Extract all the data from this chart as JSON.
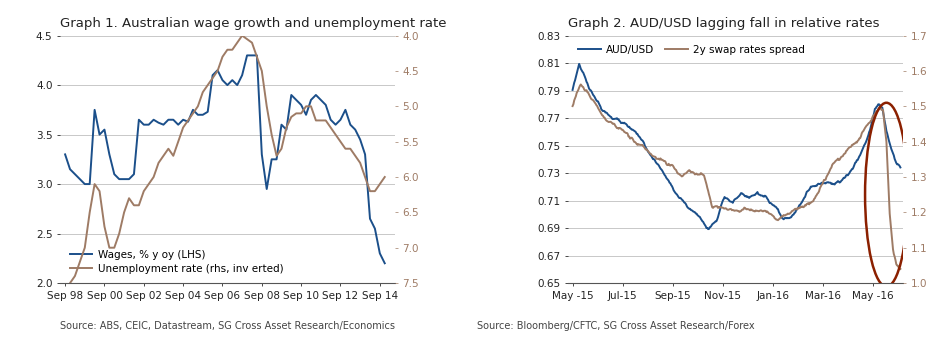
{
  "graph1": {
    "title": "Graph 1. Australian wage growth and unemployment rate",
    "source": "Source: ABS, CEIC, Datastream, SG Cross Asset Research/Economics",
    "wages_color": "#1B4F8A",
    "unemp_color": "#9E7B65",
    "lhs_ylim": [
      2.0,
      4.5
    ],
    "rhs_ylim": [
      7.5,
      4.0
    ],
    "lhs_yticks": [
      2.0,
      2.5,
      3.0,
      3.5,
      4.0,
      4.5
    ],
    "rhs_yticks": [
      4.0,
      4.5,
      5.0,
      5.5,
      6.0,
      6.5,
      7.0,
      7.5
    ],
    "xtick_labels": [
      "Sep 98",
      "Sep 00",
      "Sep 02",
      "Sep 04",
      "Sep 06",
      "Sep 08",
      "Sep 10",
      "Sep 12",
      "Sep 14"
    ],
    "legend_wages": "Wages, % y oy (LHS)",
    "legend_unemp": "Unemployment rate (rhs, inv erted)",
    "wages_x": [
      1998.75,
      1999.0,
      1999.25,
      1999.5,
      1999.75,
      2000.0,
      2000.25,
      2000.5,
      2000.75,
      2001.0,
      2001.25,
      2001.5,
      2001.75,
      2002.0,
      2002.25,
      2002.5,
      2002.75,
      2003.0,
      2003.25,
      2003.5,
      2003.75,
      2004.0,
      2004.25,
      2004.5,
      2004.75,
      2005.0,
      2005.25,
      2005.5,
      2005.75,
      2006.0,
      2006.25,
      2006.5,
      2006.75,
      2007.0,
      2007.25,
      2007.5,
      2007.75,
      2008.0,
      2008.25,
      2008.5,
      2008.75,
      2009.0,
      2009.25,
      2009.5,
      2009.75,
      2010.0,
      2010.25,
      2010.5,
      2010.75,
      2011.0,
      2011.25,
      2011.5,
      2011.75,
      2012.0,
      2012.25,
      2012.5,
      2012.75,
      2013.0,
      2013.25,
      2013.5,
      2013.75,
      2014.0,
      2014.25,
      2014.5,
      2014.75,
      2015.0
    ],
    "wages_y": [
      3.3,
      3.15,
      3.1,
      3.05,
      3.0,
      3.0,
      3.75,
      3.5,
      3.55,
      3.3,
      3.1,
      3.05,
      3.05,
      3.05,
      3.1,
      3.65,
      3.6,
      3.6,
      3.65,
      3.62,
      3.6,
      3.65,
      3.65,
      3.6,
      3.65,
      3.63,
      3.75,
      3.7,
      3.7,
      3.73,
      4.1,
      4.15,
      4.05,
      4.0,
      4.05,
      4.0,
      4.1,
      4.3,
      4.3,
      4.3,
      3.3,
      2.95,
      3.25,
      3.25,
      3.6,
      3.55,
      3.9,
      3.85,
      3.8,
      3.7,
      3.85,
      3.9,
      3.85,
      3.8,
      3.65,
      3.6,
      3.65,
      3.75,
      3.6,
      3.55,
      3.45,
      3.3,
      2.65,
      2.55,
      2.3,
      2.2
    ],
    "unemp_x": [
      1998.75,
      1999.0,
      1999.25,
      1999.5,
      1999.75,
      2000.0,
      2000.25,
      2000.5,
      2000.75,
      2001.0,
      2001.25,
      2001.5,
      2001.75,
      2002.0,
      2002.25,
      2002.5,
      2002.75,
      2003.0,
      2003.25,
      2003.5,
      2003.75,
      2004.0,
      2004.25,
      2004.5,
      2004.75,
      2005.0,
      2005.25,
      2005.5,
      2005.75,
      2006.0,
      2006.25,
      2006.5,
      2006.75,
      2007.0,
      2007.25,
      2007.5,
      2007.75,
      2008.0,
      2008.25,
      2008.5,
      2008.75,
      2009.0,
      2009.25,
      2009.5,
      2009.75,
      2010.0,
      2010.25,
      2010.5,
      2010.75,
      2011.0,
      2011.25,
      2011.5,
      2011.75,
      2012.0,
      2012.25,
      2012.5,
      2012.75,
      2013.0,
      2013.25,
      2013.5,
      2013.75,
      2014.0,
      2014.25,
      2014.5,
      2014.75,
      2015.0
    ],
    "unemp_y": [
      7.8,
      7.5,
      7.4,
      7.2,
      7.0,
      6.5,
      6.1,
      6.2,
      6.7,
      7.0,
      7.0,
      6.8,
      6.5,
      6.3,
      6.4,
      6.4,
      6.2,
      6.1,
      6.0,
      5.8,
      5.7,
      5.6,
      5.7,
      5.5,
      5.3,
      5.2,
      5.1,
      5.0,
      4.8,
      4.7,
      4.6,
      4.5,
      4.3,
      4.2,
      4.2,
      4.1,
      4.0,
      4.05,
      4.1,
      4.3,
      4.5,
      5.0,
      5.4,
      5.7,
      5.6,
      5.3,
      5.15,
      5.1,
      5.1,
      5.0,
      5.0,
      5.2,
      5.2,
      5.2,
      5.3,
      5.4,
      5.5,
      5.6,
      5.6,
      5.7,
      5.8,
      6.0,
      6.2,
      6.2,
      6.1,
      6.0
    ]
  },
  "graph2": {
    "title": "Graph 2. AUD/USD lagging fall in relative rates",
    "source": "Source: Bloomberg/CFTC, SG Cross Asset Research/Forex",
    "audusd_color": "#1B4F8A",
    "swap_color": "#9E7B65",
    "circle_color": "#8B2000",
    "lhs_ylim": [
      0.65,
      0.83
    ],
    "rhs_ylim": [
      1.0,
      1.7
    ],
    "lhs_yticks": [
      0.65,
      0.67,
      0.69,
      0.71,
      0.73,
      0.75,
      0.77,
      0.79,
      0.81,
      0.83
    ],
    "rhs_yticks": [
      1.0,
      1.1,
      1.2,
      1.3,
      1.4,
      1.5,
      1.6,
      1.7
    ],
    "legend_audusd": "AUD/USD",
    "legend_swap": "2y swap rates spread",
    "xtick_labels": [
      "May -15",
      "Jul-15",
      "Sep-15",
      "Nov-15",
      "Jan-16",
      "Mar-16",
      "May -16"
    ]
  },
  "bg_color": "#FFFFFF",
  "grid_color": "#C8C8C8",
  "text_color": "#222222",
  "rhs_tick_color": "#9E7B65",
  "source_fontsize": 7.0,
  "title_fontsize": 9.5,
  "tick_fontsize": 7.5,
  "legend_fontsize": 7.5
}
